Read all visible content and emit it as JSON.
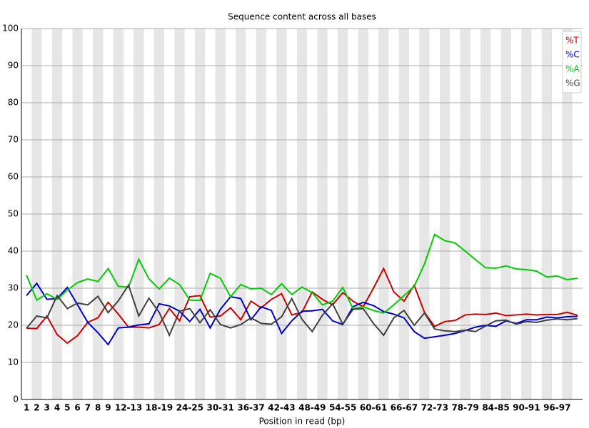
{
  "chart_data": {
    "type": "line",
    "title": "Sequence content across all bases",
    "x_label": "Position in read (bp)",
    "categories": [
      "1",
      "2",
      "3",
      "4",
      "5",
      "6",
      "7",
      "8",
      "9",
      null,
      "12-13",
      null,
      null,
      "18-19",
      null,
      null,
      "24-25",
      null,
      null,
      "30-31",
      null,
      null,
      "36-37",
      null,
      null,
      "42-43",
      null,
      null,
      "48-49",
      null,
      null,
      "54-55",
      null,
      null,
      "60-61",
      null,
      null,
      "66-67",
      null,
      null,
      "72-73",
      null,
      null,
      "78-79",
      null,
      null,
      "84-85",
      null,
      null,
      "90-91",
      null,
      null,
      "96-97",
      null,
      null
    ],
    "series": [
      {
        "name": "%T",
        "color": "#cc0000",
        "values": [
          19.2,
          19.1,
          22.5,
          17.5,
          15.2,
          17.2,
          20.8,
          22,
          26.2,
          23,
          19.5,
          19.5,
          19.3,
          20.2,
          24.5,
          21.2,
          27.7,
          28,
          22.2,
          22.5,
          24.7,
          21.5,
          26.5,
          24.7,
          27,
          28.5,
          22.8,
          23.5,
          29,
          27,
          25.5,
          28.8,
          26.5,
          25,
          30,
          35.3,
          29,
          26.5,
          30.8,
          23.5,
          19.7,
          21,
          21.3,
          22.8,
          23,
          22.9,
          23.3,
          22.6,
          22.8,
          23,
          22.8,
          22.9,
          22.9,
          23.5,
          22.7
        ]
      },
      {
        "name": "%C",
        "color": "#0000cc",
        "values": [
          28,
          31.3,
          27,
          27.2,
          30.2,
          25.5,
          20.8,
          18,
          14.8,
          19.3,
          19.5,
          20.1,
          20.4,
          25.8,
          25.2,
          23.8,
          21,
          24.3,
          19.3,
          24.3,
          27.7,
          27.2,
          21.5,
          25,
          24,
          17.8,
          21.2,
          23.8,
          23.9,
          24.3,
          21.2,
          20.2,
          25,
          26.2,
          25.3,
          23.7,
          23,
          22,
          18.3,
          16.5,
          16.9,
          17.3,
          17.8,
          18.6,
          19.5,
          20,
          19.7,
          21.2,
          20.5,
          21.5,
          21.5,
          22.2,
          22,
          22.3,
          22.4
        ]
      },
      {
        "name": "%A",
        "color": "#00cc00",
        "values": [
          33.5,
          26.8,
          28.5,
          27,
          29.5,
          31.5,
          32.5,
          31.8,
          35.3,
          30.5,
          30.3,
          37.8,
          32.5,
          29.8,
          32.7,
          31,
          26.8,
          26.7,
          34,
          32.7,
          27.7,
          31,
          29.8,
          30,
          28.3,
          31.2,
          28.3,
          30.3,
          28.8,
          25.5,
          26.5,
          30.2,
          24.5,
          25,
          24,
          23.3,
          25.5,
          28,
          30.5,
          36.5,
          44.5,
          42.8,
          42.2,
          40,
          37.7,
          35.5,
          35.4,
          36,
          35.2,
          35,
          34.6,
          33,
          33.3,
          32.3,
          32.7
        ]
      },
      {
        "name": "%G",
        "color": "#404040",
        "values": [
          19.2,
          22.5,
          22,
          28,
          24.5,
          26,
          25.5,
          27.8,
          23.4,
          26.6,
          30.8,
          22.5,
          27.3,
          23.5,
          17.3,
          23.8,
          24.5,
          20.7,
          24.2,
          20.2,
          19.3,
          20.2,
          22,
          20.5,
          20.3,
          22.3,
          27.2,
          21.6,
          18.3,
          22.7,
          25.8,
          20.3,
          24.3,
          24.5,
          20.5,
          17.3,
          22,
          24,
          20,
          23.3,
          19,
          18.5,
          18.3,
          18.7,
          18.3,
          19.8,
          21.2,
          21.4,
          20.3,
          21,
          20.8,
          21.4,
          21.7,
          21.5,
          21.8
        ]
      }
    ],
    "ylim": [
      0,
      100
    ],
    "yticks": [
      0,
      10,
      20,
      30,
      40,
      50,
      60,
      70,
      80,
      90,
      100
    ],
    "grid": true,
    "legend": "top-right"
  }
}
